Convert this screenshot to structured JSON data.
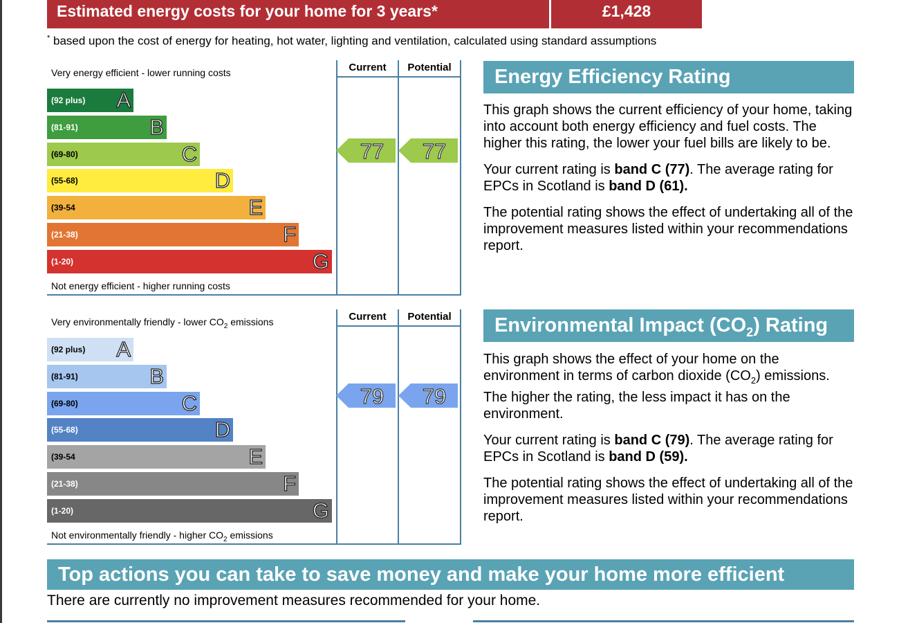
{
  "cost": {
    "label": "Estimated energy costs for your home for 3 years*",
    "value": "£1,428",
    "footnote_mark": "*",
    "footnote": "based upon the cost of energy for heating, hot water, lighting and ventilation, calculated using standard assumptions"
  },
  "energy_chart": {
    "top_caption": "Very energy efficient - lower running costs",
    "bottom_caption": "Not energy efficient - higher running costs",
    "col_current": "Current",
    "col_potential": "Potential",
    "current": "77",
    "potential": "77",
    "bands": [
      {
        "range": "(92 plus)",
        "letter": "A",
        "color": "#1b7b3e"
      },
      {
        "range": "(81-91)",
        "letter": "B",
        "color": "#3f9c3f"
      },
      {
        "range": "(69-80)",
        "letter": "C",
        "color": "#9dc94d"
      },
      {
        "range": "(55-68)",
        "letter": "D",
        "color": "#ffec3f"
      },
      {
        "range": "(39-54",
        "letter": "E",
        "color": "#f2b03d"
      },
      {
        "range": "(21-38)",
        "letter": "F",
        "color": "#e27533"
      },
      {
        "range": "(1-20)",
        "letter": "G",
        "color": "#d3322e"
      }
    ],
    "arrow_color": "#9dc94d"
  },
  "env_chart": {
    "top_caption_pre": "Very environmentally friendly - lower CO",
    "top_caption_sub": "2",
    "top_caption_post": " emissions",
    "bottom_caption_pre": "Not environmentally friendly - higher CO",
    "bottom_caption_sub": "2",
    "bottom_caption_post": " emissions",
    "col_current": "Current",
    "col_potential": "Potential",
    "current": "79",
    "potential": "79",
    "bands": [
      {
        "range": "(92 plus)",
        "letter": "A",
        "color": "#cfe0f5"
      },
      {
        "range": "(81-91)",
        "letter": "B",
        "color": "#a6c6ef"
      },
      {
        "range": "(69-80)",
        "letter": "C",
        "color": "#7aa5ee"
      },
      {
        "range": "(55-68)",
        "letter": "D",
        "color": "#5383c4"
      },
      {
        "range": "(39-54",
        "letter": "E",
        "color": "#a4a4a4"
      },
      {
        "range": "(21-38)",
        "letter": "F",
        "color": "#878787"
      },
      {
        "range": "(1-20)",
        "letter": "G",
        "color": "#676767"
      }
    ],
    "arrow_color": "#7aa5ee"
  },
  "energy_panel": {
    "title": "Energy Efficiency Rating",
    "p1": "This graph shows the current efficiency of your home, taking into account both energy efficiency and fuel costs. The higher this rating, the lower your fuel bills are likely to be.",
    "p2_a": "Your current rating is ",
    "p2_b": "band C (77)",
    "p2_c": ". The average rating for EPCs in Scotland is ",
    "p2_d": "band D (61).",
    "p3": "The potential rating shows the effect of undertaking all of the improvement measures listed within your recommendations report."
  },
  "env_panel": {
    "title_pre": "Environmental Impact (CO",
    "title_sub": "2",
    "title_post": ") Rating",
    "p1_a": "This graph shows the effect of your home on the environment in terms of carbon dioxide (CO",
    "p1_sub": "2",
    "p1_b": ") emissions. The higher the rating, the less impact it has on the environment.",
    "p2_a": "Your current rating is ",
    "p2_b": "band C (79)",
    "p2_c": ". The average rating for EPCs in Scotland is ",
    "p2_d": "band D (59).",
    "p3": "The potential rating shows the effect of undertaking all of the improvement measures listed within your recommendations report."
  },
  "actions": {
    "title": "Top actions you can take to save money and make your home more efficient",
    "text": "There are currently no improvement measures recommended for your home."
  }
}
